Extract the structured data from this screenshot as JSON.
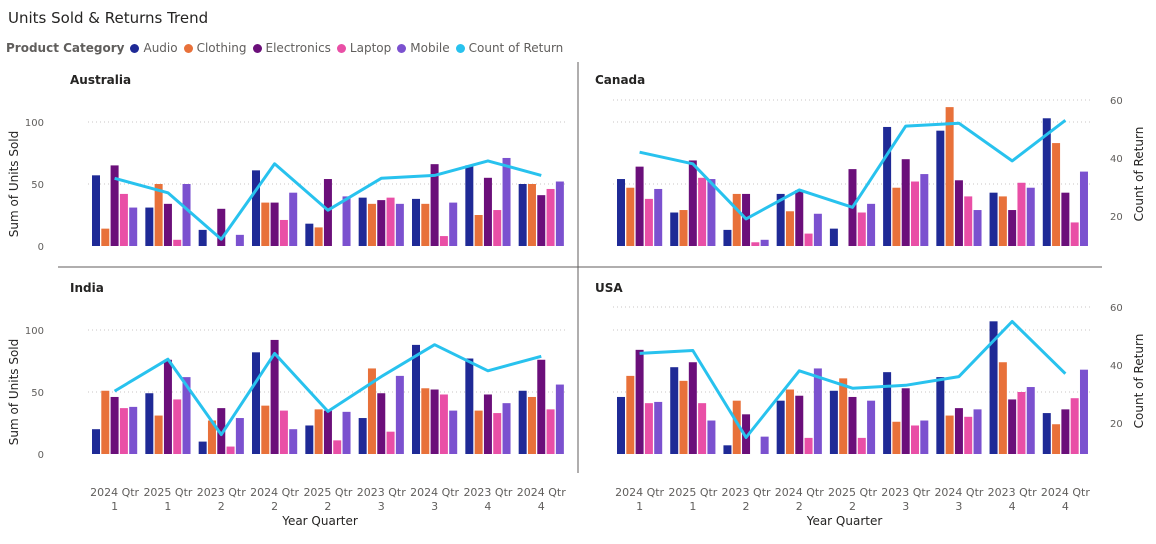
{
  "title": "Units Sold & Returns Trend",
  "legend": {
    "title": "Product Category",
    "items": [
      {
        "label": "Audio",
        "color": "#1f2a96"
      },
      {
        "label": "Clothing",
        "color": "#e8713a"
      },
      {
        "label": "Electronics",
        "color": "#6b0f7a"
      },
      {
        "label": "Laptop",
        "color": "#e94fa6"
      },
      {
        "label": "Mobile",
        "color": "#7b51cf"
      },
      {
        "label": "Count of Return",
        "color": "#28c2ee"
      }
    ]
  },
  "axis_text": {
    "y_left": "Sum of Units Sold",
    "y_right": "Count of Return",
    "x": "Year Quarter"
  },
  "chart_data": {
    "type": "bar",
    "categories": [
      [
        "2024 Qtr",
        "1"
      ],
      [
        "2025 Qtr",
        "1"
      ],
      [
        "2023 Qtr",
        "2"
      ],
      [
        "2024 Qtr",
        "2"
      ],
      [
        "2025 Qtr",
        "2"
      ],
      [
        "2023 Qtr",
        "3"
      ],
      [
        "2024 Qtr",
        "3"
      ],
      [
        "2023 Qtr",
        "4"
      ],
      [
        "2024 Qtr",
        "4"
      ]
    ],
    "y_ticks": [
      "0",
      "50",
      "100"
    ],
    "y_right_ticks": [
      "20",
      "40",
      "60"
    ],
    "ylim": [
      0,
      120
    ],
    "y2lim": [
      7,
      65
    ],
    "series_names": [
      "Audio",
      "Clothing",
      "Electronics",
      "Laptop",
      "Mobile"
    ],
    "line_series_name": "Count of Return",
    "panels": [
      {
        "name": "Australia",
        "bars": [
          [
            57,
            14,
            65,
            42,
            31
          ],
          [
            31,
            50,
            34,
            5,
            50
          ],
          [
            13,
            null,
            30,
            null,
            9
          ],
          [
            61,
            35,
            35,
            21,
            43
          ],
          [
            18,
            15,
            54,
            null,
            40
          ],
          [
            39,
            34,
            37,
            39,
            34
          ],
          [
            38,
            34,
            66,
            8,
            35
          ],
          [
            65,
            25,
            55,
            29,
            71
          ],
          [
            50,
            50,
            41,
            46,
            52
          ]
        ],
        "returns": [
          33,
          28,
          12,
          38,
          22,
          33,
          34,
          39,
          34
        ]
      },
      {
        "name": "Canada",
        "bars": [
          [
            54,
            47,
            64,
            38,
            46
          ],
          [
            27,
            29,
            69,
            55,
            54
          ],
          [
            13,
            42,
            42,
            3,
            5
          ],
          [
            42,
            28,
            45,
            10,
            26
          ],
          [
            14,
            null,
            62,
            27,
            34
          ],
          [
            96,
            47,
            70,
            52,
            58
          ],
          [
            93,
            112,
            53,
            40,
            29
          ],
          [
            43,
            40,
            29,
            51,
            47
          ],
          [
            103,
            83,
            43,
            19,
            60
          ]
        ],
        "returns": [
          42,
          38,
          19,
          29,
          23,
          51,
          52,
          39,
          53
        ]
      },
      {
        "name": "India",
        "bars": [
          [
            20,
            51,
            46,
            37,
            38
          ],
          [
            49,
            31,
            76,
            44,
            62
          ],
          [
            10,
            27,
            37,
            6,
            29
          ],
          [
            82,
            39,
            92,
            35,
            20
          ],
          [
            23,
            36,
            35,
            11,
            34
          ],
          [
            29,
            69,
            49,
            18,
            63
          ],
          [
            88,
            53,
            52,
            48,
            35
          ],
          [
            77,
            35,
            48,
            33,
            41
          ],
          [
            51,
            46,
            76,
            36,
            56
          ]
        ],
        "returns": [
          31,
          42,
          16,
          44,
          24,
          36,
          47,
          38,
          43
        ]
      },
      {
        "name": "USA",
        "bars": [
          [
            46,
            63,
            84,
            41,
            42
          ],
          [
            70,
            59,
            74,
            41,
            27
          ],
          [
            7,
            43,
            32,
            null,
            14
          ],
          [
            43,
            52,
            47,
            13,
            69
          ],
          [
            51,
            61,
            46,
            13,
            43
          ],
          [
            66,
            26,
            53,
            23,
            27
          ],
          [
            62,
            31,
            37,
            30,
            36
          ],
          [
            107,
            74,
            44,
            50,
            54
          ],
          [
            33,
            24,
            36,
            45,
            68
          ]
        ],
        "returns": [
          44,
          45,
          15,
          38,
          32,
          33,
          36,
          55,
          37
        ]
      }
    ]
  }
}
